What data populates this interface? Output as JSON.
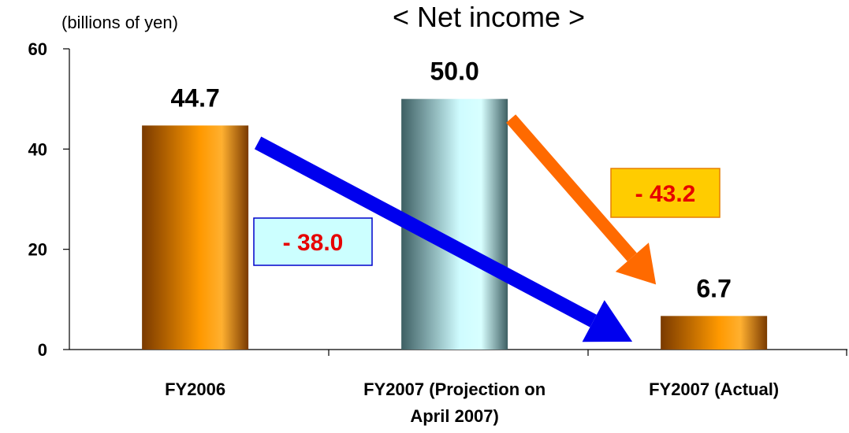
{
  "chart_data": {
    "type": "bar",
    "title": "< Net income >",
    "unit_label": "(billions of yen)",
    "categories": [
      [
        "FY2006"
      ],
      [
        "FY2007 (Projection on",
        "April 2007)"
      ],
      [
        "FY2007 (Actual)"
      ]
    ],
    "values": [
      44.7,
      50.0,
      6.7
    ],
    "value_labels": [
      "44.7",
      "50.0",
      "6.7"
    ],
    "ylim": [
      0,
      60
    ],
    "yticks": [
      0,
      20,
      40,
      60
    ],
    "grid": false,
    "bar_styles": [
      "orange-gradient",
      "teal-gradient",
      "orange-gradient"
    ],
    "colors": {
      "orange_dark": "#7a3a00",
      "orange_light": "#ff9900",
      "teal_dark": "#3e5f63",
      "teal_light": "#cffcff",
      "arrow_blue": "#0000ee",
      "arrow_orange": "#ff6a00",
      "annotation_text": "#e60000"
    },
    "annotations": [
      {
        "text": "- 38.0",
        "from_bar": 0,
        "to_bar": 2,
        "box_fill": "#ccffff",
        "box_stroke": "#0000cc",
        "arrow": "blue"
      },
      {
        "text": "- 43.2",
        "from_bar": 1,
        "to_bar": 2,
        "box_fill": "#ffcc00",
        "box_stroke": "#e67e00",
        "arrow": "orange"
      }
    ]
  }
}
